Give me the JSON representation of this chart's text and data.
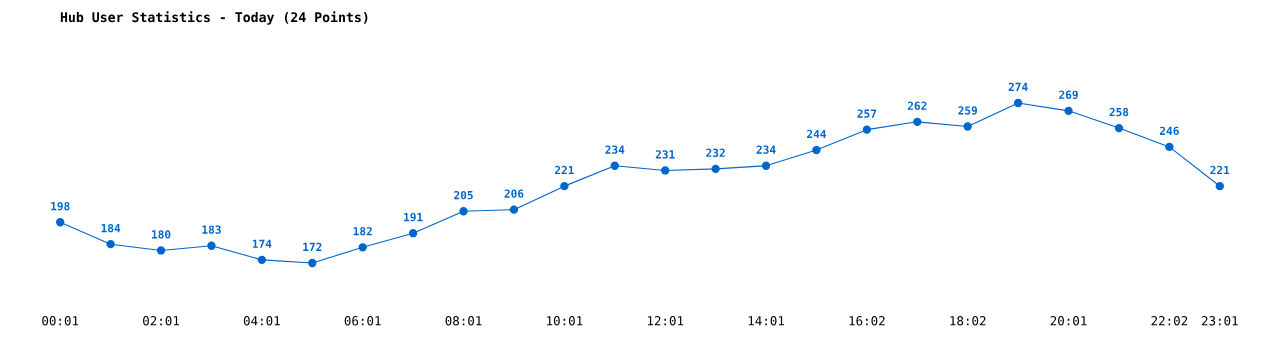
{
  "chart_data": {
    "type": "line",
    "title": "Hub User Statistics - Today (24 Points)",
    "categories": [
      "00:01",
      null,
      "02:01",
      null,
      "04:01",
      null,
      "06:01",
      null,
      "08:01",
      null,
      "10:01",
      null,
      "12:01",
      null,
      "14:01",
      null,
      "16:02",
      null,
      "18:02",
      null,
      "20:01",
      null,
      "22:02",
      "23:01"
    ],
    "series": [
      {
        "color": "#0066cc",
        "values": [
          198,
          184,
          180,
          183,
          174,
          172,
          182,
          191,
          205,
          206,
          221,
          234,
          231,
          232,
          234,
          244,
          257,
          262,
          259,
          274,
          269,
          258,
          246,
          221
        ]
      }
    ],
    "tick_labels": "x",
    "data_labels": true,
    "marker": "circle",
    "line_style": "solid",
    "grid": false,
    "legend": false
  }
}
